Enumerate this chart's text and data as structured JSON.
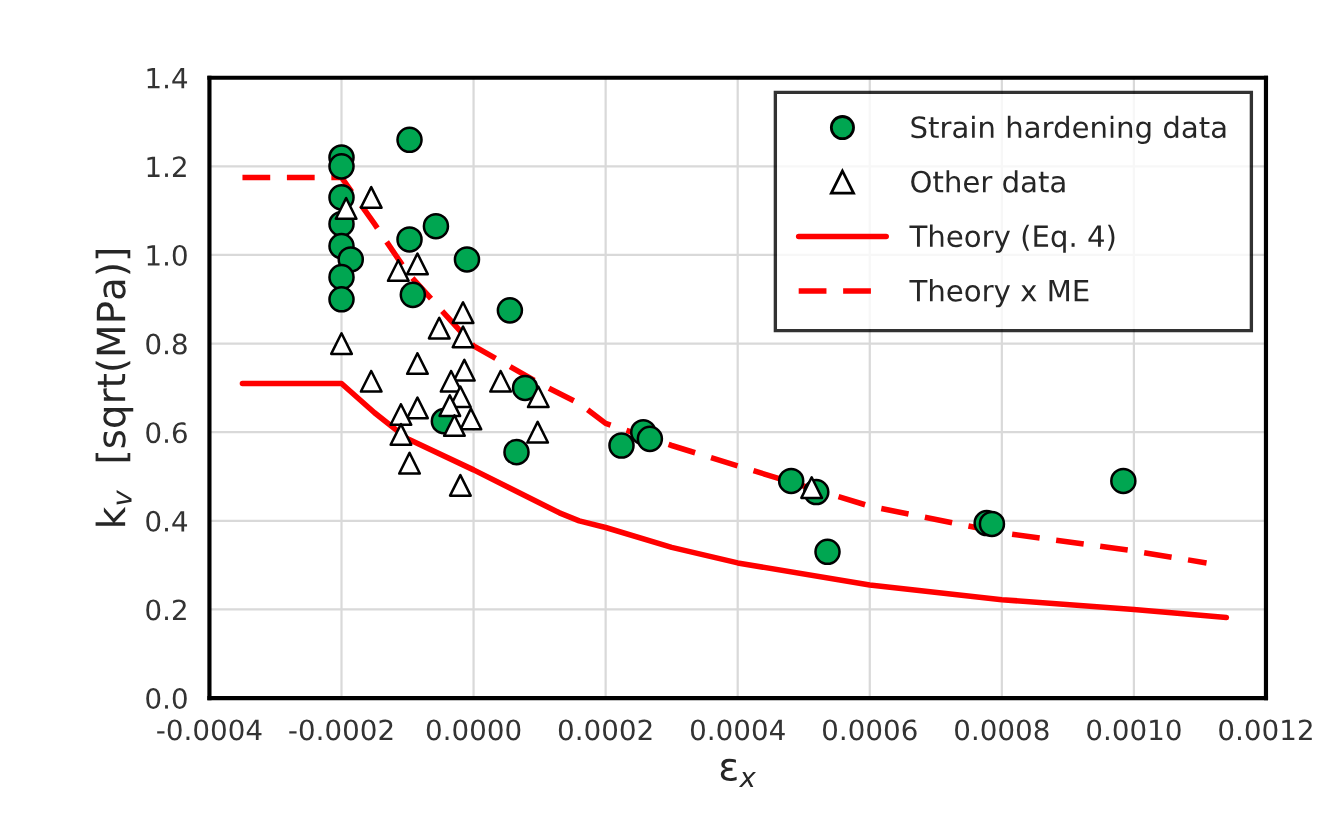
{
  "chart_data": {
    "type": "scatter",
    "xlabel": "ε$_{x}$",
    "ylabel": "k$_{v}$  [sqrt(MPa)]",
    "xlim": [
      -0.0004,
      0.0012
    ],
    "xticks": [
      {
        "value": -0.0004,
        "label": "-0.0004"
      },
      {
        "value": -0.0002,
        "label": "-0.0002"
      },
      {
        "value": 0,
        "label": "0.0000"
      },
      {
        "value": 0.0002,
        "label": "0.0002"
      },
      {
        "value": 0.0004,
        "label": "0.0004"
      },
      {
        "value": 0.0006,
        "label": "0.0006"
      },
      {
        "value": 0.0008,
        "label": "0.0008"
      },
      {
        "value": 0.001,
        "label": "0.0010"
      },
      {
        "value": 0.0012,
        "label": "0.0012"
      }
    ],
    "ylim": [
      0,
      1.4
    ],
    "yticks": [
      {
        "value": 0,
        "label": "0.0"
      },
      {
        "value": 0.2,
        "label": "0.2"
      },
      {
        "value": 0.4,
        "label": "0.4"
      },
      {
        "value": 0.6,
        "label": "0.6"
      },
      {
        "value": 0.8,
        "label": "0.8"
      },
      {
        "value": 1.0,
        "label": "1.0"
      },
      {
        "value": 1.2,
        "label": "1.2"
      },
      {
        "value": 1.4,
        "label": "1.4"
      }
    ],
    "grid": true,
    "legend": "top right",
    "series": [
      {
        "name": "Strain hardening data",
        "marker": "circle",
        "color": "#00a651",
        "x": [
          -0.0002,
          -0.0002,
          -0.0002,
          -0.0002,
          -0.0002,
          -0.000186,
          -0.0002,
          -0.0002,
          -9.7e-05,
          -9.7e-05,
          -5.7e-05,
          -1e-05,
          -9.2e-05,
          5.5e-05,
          7.8e-05,
          -4.5e-05,
          6.5e-05,
          0.000224,
          0.000257,
          0.000267,
          0.000481,
          0.000519,
          0.000536,
          0.000777,
          0.000785,
          0.000984
        ],
        "values": [
          1.22,
          1.2,
          1.13,
          1.07,
          1.02,
          0.99,
          0.95,
          0.9,
          1.26,
          1.035,
          1.065,
          0.99,
          0.91,
          0.875,
          0.7,
          0.625,
          0.555,
          0.57,
          0.6,
          0.585,
          0.49,
          0.465,
          0.33,
          0.395,
          0.393,
          0.49
        ]
      },
      {
        "name": "Other data",
        "marker": "triangle",
        "color": "#ffffff",
        "x": [
          -0.000193,
          -0.000155,
          -0.0002,
          -0.000114,
          -8.5e-05,
          -1.6e-05,
          -5.2e-05,
          -1.6e-05,
          -0.000155,
          -8.5e-05,
          -1.4e-05,
          -3.4e-05,
          4.1e-05,
          -2e-05,
          9.8e-05,
          -8.5e-05,
          -3.6e-05,
          -0.00011,
          -4e-06,
          -2.9e-05,
          -0.00011,
          9.7e-05,
          -9.7e-05,
          -2e-05,
          0.000512
        ],
        "values": [
          1.105,
          1.13,
          0.8,
          0.965,
          0.98,
          0.87,
          0.835,
          0.815,
          0.715,
          0.755,
          0.74,
          0.715,
          0.715,
          0.68,
          0.68,
          0.655,
          0.66,
          0.64,
          0.63,
          0.615,
          0.595,
          0.6,
          0.53,
          0.48,
          0.475
        ]
      },
      {
        "name": "Theory (Eq. 4)",
        "type": "line",
        "line_style": "solid",
        "marker": "none",
        "color": "#ff0000",
        "x": [
          -0.00035,
          -0.0002,
          -0.00015,
          -0.0001,
          0,
          0.00013,
          0.00016,
          0.0002,
          0.0003,
          0.0004,
          0.0006,
          0.0008,
          0.001,
          0.00114
        ],
        "values": [
          0.71,
          0.71,
          0.644,
          0.585,
          0.515,
          0.418,
          0.4,
          0.385,
          0.34,
          0.305,
          0.255,
          0.222,
          0.2,
          0.182
        ]
      },
      {
        "name": "Theory x ME",
        "type": "line",
        "line_style": "dashed",
        "marker": "none",
        "color": "#ff0000",
        "x": [
          -0.00035,
          -0.0002,
          -0.00015,
          -0.0001,
          0,
          0.0001,
          0.00016,
          0.0002,
          0.0003,
          0.0004,
          0.0006,
          0.0008,
          0.001,
          0.00111
        ],
        "values": [
          1.175,
          1.175,
          1.07,
          0.96,
          0.795,
          0.71,
          0.665,
          0.62,
          0.57,
          0.524,
          0.433,
          0.373,
          0.332,
          0.305
        ]
      }
    ]
  }
}
